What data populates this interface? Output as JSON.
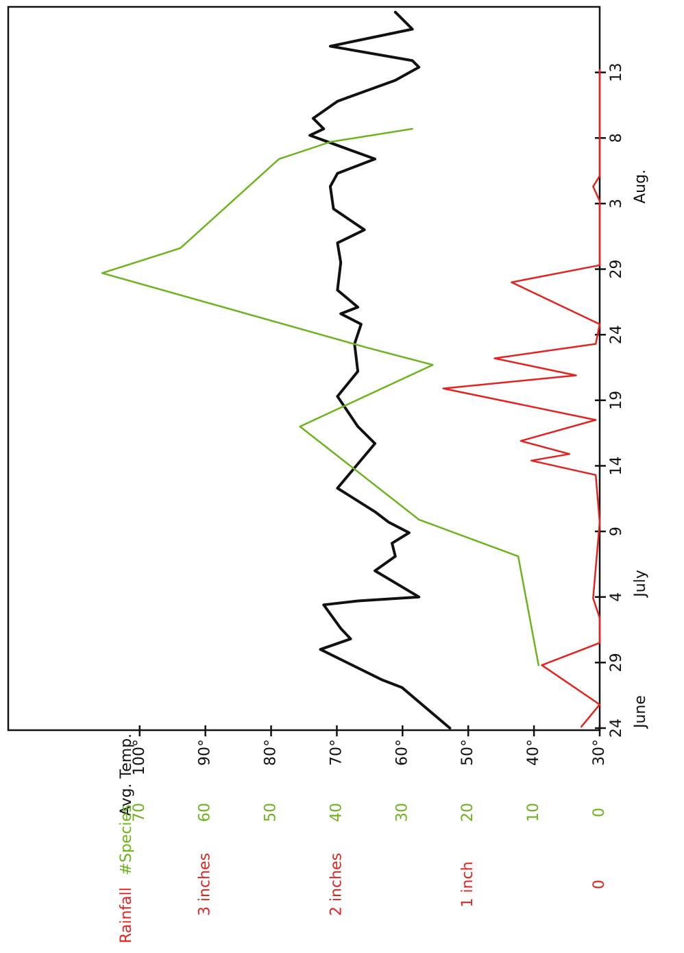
{
  "chart_data": {
    "type": "line",
    "xlim": [
      0,
      55
    ],
    "xticks": [
      {
        "value": 0,
        "label": "24"
      },
      {
        "value": 5,
        "label": "29"
      },
      {
        "value": 10,
        "label": "4"
      },
      {
        "value": 15,
        "label": "9"
      },
      {
        "value": 20,
        "label": "14"
      },
      {
        "value": 25,
        "label": "19"
      },
      {
        "value": 30,
        "label": "24"
      },
      {
        "value": 35,
        "label": "29"
      },
      {
        "value": 40,
        "label": "3"
      },
      {
        "value": 45,
        "label": "8"
      },
      {
        "value": 50,
        "label": "13"
      }
    ],
    "month_labels": [
      {
        "value": 0,
        "label": "June"
      },
      {
        "value": 10,
        "label": "July"
      },
      {
        "value": 40,
        "label": "Aug."
      }
    ],
    "ylim": [
      30,
      120
    ],
    "yticks": [
      {
        "value": 30,
        "label": "30°"
      },
      {
        "value": 40,
        "label": "40°"
      },
      {
        "value": 50,
        "label": "50°"
      },
      {
        "value": 60,
        "label": "60°"
      },
      {
        "value": 70,
        "label": "70°"
      },
      {
        "value": 80,
        "label": "80°"
      },
      {
        "value": 90,
        "label": "90°"
      },
      {
        "value": 100,
        "label": "100°"
      }
    ],
    "y2lim": [
      0,
      90
    ],
    "y2ticks": [
      0,
      10,
      20,
      30,
      40,
      50,
      60,
      70
    ],
    "y3lim": [
      0,
      4.5
    ],
    "y3ticks": [
      0,
      {
        "value": 1,
        "label": "1 inch"
      },
      {
        "value": 2,
        "label": "2 inches"
      },
      {
        "value": 3,
        "label": "3 inches"
      }
    ],
    "series": [
      {
        "name": "Avg. Temp.",
        "color": "#111111",
        "axis": "y",
        "x": [
          0,
          3.1,
          3.7,
          6,
          6.8,
          7.6,
          9.4,
          9.7,
          10,
          12,
          13.1,
          14.1,
          14.9,
          15.7,
          16.5,
          18.3,
          21.7,
          23,
          25.3,
          27.2,
          29.3,
          30.8,
          31.6,
          32.1,
          33.4,
          35.5,
          37,
          38,
          39.6,
          41.3,
          42.3,
          43.4,
          45.2,
          45.7,
          46.5,
          47.8,
          49.4,
          50.4,
          50.9,
          52,
          53.3,
          54.6
        ],
        "values": [
          52.8,
          60.1,
          63.2,
          72.5,
          67.9,
          69.4,
          72,
          66.8,
          57.5,
          64.2,
          61.1,
          61.6,
          59,
          62.1,
          64.2,
          69.9,
          64.2,
          66.8,
          69.9,
          66.8,
          67.3,
          66.3,
          69.4,
          66.8,
          69.9,
          69.4,
          69.9,
          65.8,
          70.5,
          71,
          69.9,
          64.2,
          74.1,
          72,
          73.6,
          69.9,
          61.1,
          57.5,
          58.5,
          71,
          58.5,
          61.1
        ]
      },
      {
        "name": "#Species",
        "color": "#6cb31d",
        "axis": "y2",
        "x": [
          4.8,
          13.1,
          15.9,
          23,
          27.7,
          29,
          34.7,
          36.6,
          43.4,
          44.7,
          45.7
        ],
        "values": [
          9.3,
          12.4,
          27.5,
          45.6,
          25.4,
          35.3,
          75.7,
          63.8,
          48.8,
          41,
          28.5
        ]
      },
      {
        "name": "Rainfall",
        "color": "#e2231f",
        "axis": "y3",
        "x": [
          0.1,
          1.8,
          4.8,
          6.5,
          8.4,
          9.9,
          15.7,
          19.3,
          20.4,
          20.9,
          21.9,
          23.5,
          25.9,
          26.9,
          28.2,
          29.3,
          30.8,
          34,
          35.3,
          40.2,
          41.3,
          42.1,
          50.2
        ],
        "values": [
          0.14,
          0,
          0.44,
          0,
          0,
          0.05,
          0,
          0.03,
          0.52,
          0.23,
          0.6,
          0.03,
          1.19,
          0.18,
          0.8,
          0.03,
          0,
          0.67,
          0,
          0,
          0.05,
          0,
          0
        ]
      }
    ]
  }
}
